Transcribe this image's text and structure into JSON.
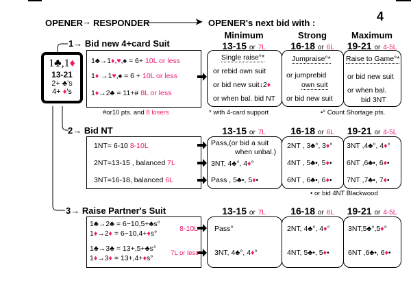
{
  "page_number": "4",
  "header": {
    "opener": "OPENER",
    "responder": "RESPONDER",
    "next": "OPENER's next bid with :"
  },
  "columns": [
    {
      "title": "Minimum",
      "range": "13-15",
      "losers": "7L"
    },
    {
      "title": "Strong",
      "range": "16-18",
      "losers": "6L"
    },
    {
      "title": "Maximum",
      "range": "19-21",
      "losers": "4-5L"
    }
  ],
  "or_label": "or",
  "opener_box": {
    "bid": "1♣,1♦",
    "points": "13-21",
    "clubs": "2+ ♣'s",
    "diamonds": "4+ ♦'s"
  },
  "section1": {
    "num": "1",
    "title": "Bid new 4+card Suit",
    "rows": [
      {
        "bid": "1♣→1♦,♥,♠ = 6+",
        "losers": "10L or less"
      },
      {
        "bid": "1♦ →1♥,♠ = 6 +",
        "losers": "10L or less"
      },
      {
        "bid": "1♦→2♣      = 11+#",
        "losers": "8L or less"
      }
    ],
    "footnote": "#or10 pts. and ",
    "footnote_pink": "8 losers",
    "minimum": [
      "Single raise°*",
      "or rebid own suit",
      "or bid new suit↓2♦",
      "or when bal. bid NT"
    ],
    "strong": [
      "Jumpraise°*",
      "or jumprebid",
      "own suit",
      "or bid new suit"
    ],
    "maximum": [
      "Raise to Game°*",
      "or bid new suit",
      "or when bal.",
      "bid 3NT"
    ],
    "note_support": "* with 4-card support",
    "note_shortage": "•° Count Shortage pts."
  },
  "section2": {
    "num": "2",
    "title": "Bid NT",
    "rows": [
      {
        "bid": "1NT= 6-10",
        "losers": "8-10L"
      },
      {
        "bid": "2NT=13-15 , balanced",
        "losers": "7L"
      },
      {
        "bid": "3NT=16-18, balanced",
        "losers": "6L"
      }
    ],
    "minimum": [
      "Pass,(or bid a suit",
      "when unbal.)",
      "3NT,  4♣°, 4♦°",
      "Pass , 5♣•, 5♦•"
    ],
    "strong": [
      "2NT , 3♣°, 3♦°",
      "4NT , 5♣•, 5♦•",
      "6NT , 6♣•, 6♦•"
    ],
    "maximum": [
      "3NT ,4♣°, 4♦°",
      "6NT ,6♣•, 6♦•",
      "7NT ,7♣•, 7♦•"
    ],
    "note": "• or bid 4NT Blackwood"
  },
  "section3": {
    "num": "3",
    "title": "Raise Partner's Suit",
    "rows": [
      "1♣→2♣ = 6−10,5+♣s°",
      "1♦→2♦ = 6−10,4+♦s°",
      "1♣→3♣ = 13+,5+♣s°",
      "1♦→3♦ = 13+,4+♦s°"
    ],
    "losers_a": "8-10L",
    "losers_b": "7L or less",
    "minimum": [
      "Pass°",
      "3NT, 4♣°, 4♦°"
    ],
    "strong": [
      "2NT, 4♣°, 4♦°",
      "4NT, 5♣•, 5♦•"
    ],
    "maximum": [
      "3NT,5♣°,5♦°",
      "6NT ,6♣•, 6♦•"
    ]
  },
  "colors": {
    "accent": "#f0186e",
    "ink": "#000000"
  }
}
